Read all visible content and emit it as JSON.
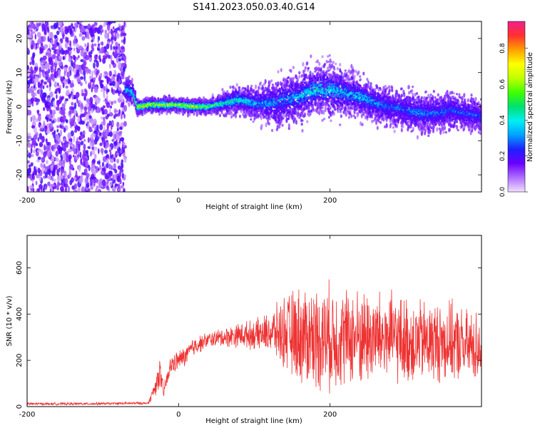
{
  "title": "S141.2023.050.03.40.G14",
  "chart_data": [
    {
      "type": "heatmap",
      "xlabel": "Height of straight line (km)",
      "ylabel": "Frequency (Hz)",
      "xlim": [
        -200,
        400
      ],
      "ylim": [
        -25,
        25
      ],
      "xticks": [
        -200,
        0,
        200
      ],
      "yticks": [
        -20,
        -10,
        0,
        10,
        20
      ],
      "colorbar": {
        "label": "Normalized spectral amplitude",
        "range": [
          0,
          0.95
        ],
        "ticks": [
          0.0,
          0.2,
          0.4,
          0.6,
          0.8
        ],
        "colors": [
          "#f0e0ff",
          "#b070ff",
          "#6a00ff",
          "#2020ff",
          "#00a0ff",
          "#00f0f0",
          "#00e070",
          "#40ff00",
          "#c0ff00",
          "#ffff00",
          "#ffa000",
          "#ff3030",
          "#f0208a"
        ]
      },
      "noise_region": [
        -200,
        -70
      ],
      "ridge": {
        "x": [
          -70,
          -60,
          -55,
          -50,
          -40,
          -20,
          0,
          20,
          40,
          60,
          80,
          100,
          120,
          140,
          160,
          180,
          200,
          220,
          240,
          260,
          280,
          300,
          320,
          340,
          360,
          380,
          400
        ],
        "frequency": [
          5,
          4,
          0,
          0,
          0.5,
          0.5,
          0.5,
          0,
          0,
          1,
          2,
          1,
          1,
          2,
          3,
          5,
          5,
          4,
          3,
          1,
          0,
          -1,
          -2,
          -2,
          -1,
          -2,
          -3
        ],
        "spread": [
          4,
          3,
          2,
          2,
          2,
          2,
          2,
          2,
          2,
          3,
          4,
          4,
          6,
          7,
          7,
          7,
          7,
          6,
          6,
          5,
          5,
          5,
          5,
          5,
          5,
          4,
          4
        ],
        "peak_amplitude": [
          0.5,
          0.5,
          0.9,
          0.9,
          0.85,
          0.8,
          0.8,
          0.85,
          0.7,
          0.55,
          0.55,
          0.45,
          0.4,
          0.4,
          0.45,
          0.5,
          0.5,
          0.45,
          0.45,
          0.4,
          0.35,
          0.35,
          0.4,
          0.35,
          0.35,
          0.35,
          0.35
        ]
      }
    },
    {
      "type": "line",
      "xlabel": "Height of straight line (km)",
      "ylabel": "SNR (10 * v/v)",
      "xlim": [
        -200,
        400
      ],
      "ylim": [
        0,
        740
      ],
      "xticks": [
        -200,
        0,
        200
      ],
      "yticks": [
        0,
        200,
        400,
        600
      ],
      "color": "#ee3333",
      "envelope": {
        "x": [
          -200,
          -120,
          -40,
          -30,
          -25,
          -20,
          -10,
          0,
          10,
          20,
          40,
          60,
          80,
          100,
          120,
          140,
          160,
          180,
          200,
          220,
          240,
          260,
          280,
          300,
          320,
          340,
          360,
          380,
          400
        ],
        "mean": [
          12,
          12,
          15,
          90,
          150,
          60,
          180,
          200,
          220,
          260,
          290,
          300,
          310,
          310,
          320,
          320,
          310,
          300,
          300,
          300,
          300,
          300,
          300,
          280,
          280,
          280,
          280,
          260,
          260
        ],
        "spread": [
          5,
          5,
          5,
          40,
          60,
          30,
          40,
          40,
          40,
          40,
          30,
          40,
          50,
          60,
          80,
          150,
          200,
          210,
          220,
          200,
          200,
          190,
          180,
          180,
          170,
          170,
          160,
          150,
          150
        ]
      }
    }
  ]
}
